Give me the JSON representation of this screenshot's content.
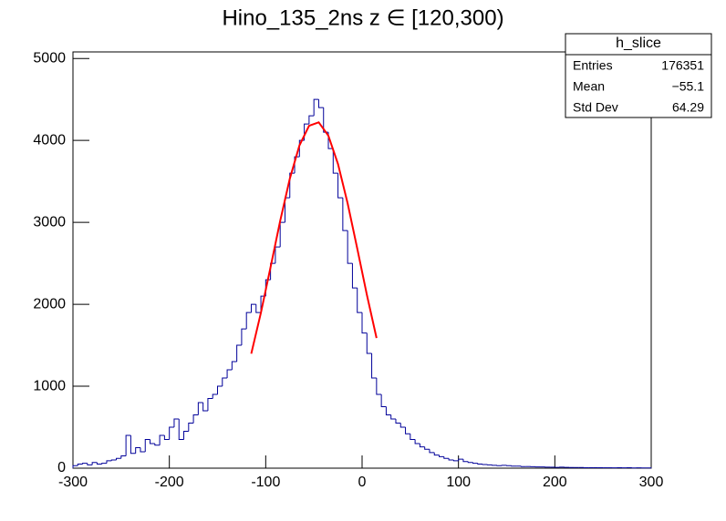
{
  "chart_data": {
    "type": "histogram",
    "title": "Hino_135_2ns z  ∈ [120,300)",
    "bins": [
      -300,
      -295,
      -290,
      -285,
      -280,
      -275,
      -270,
      -265,
      -260,
      -255,
      -250,
      -245,
      -240,
      -235,
      -230,
      -225,
      -220,
      -215,
      -210,
      -205,
      -200,
      -195,
      -190,
      -185,
      -180,
      -175,
      -170,
      -165,
      -160,
      -155,
      -150,
      -145,
      -140,
      -135,
      -130,
      -125,
      -120,
      -115,
      -110,
      -105,
      -100,
      -95,
      -90,
      -85,
      -80,
      -75,
      -70,
      -65,
      -60,
      -55,
      -50,
      -45,
      -40,
      -35,
      -30,
      -25,
      -20,
      -15,
      -10,
      -5,
      0,
      5,
      10,
      15,
      20,
      25,
      30,
      35,
      40,
      45,
      50,
      55,
      60,
      65,
      70,
      75,
      80,
      85,
      90,
      95,
      100,
      105,
      110,
      115,
      120,
      125,
      130,
      135,
      140,
      145,
      150,
      155,
      160,
      165,
      170,
      175,
      180,
      185,
      190,
      195,
      200,
      205,
      210,
      215,
      220,
      225,
      230,
      235,
      240,
      245,
      250,
      255,
      260,
      265,
      270,
      275,
      280,
      285,
      290,
      295,
      300
    ],
    "values": [
      30,
      50,
      60,
      40,
      70,
      50,
      60,
      90,
      100,
      120,
      150,
      400,
      180,
      250,
      200,
      350,
      300,
      280,
      400,
      350,
      500,
      600,
      350,
      450,
      550,
      650,
      800,
      700,
      850,
      900,
      1000,
      1100,
      1200,
      1300,
      1500,
      1700,
      1900,
      2000,
      1900,
      2100,
      2300,
      2500,
      2700,
      3000,
      3300,
      3600,
      3800,
      4000,
      4200,
      4300,
      4500,
      4400,
      4100,
      3900,
      3600,
      3300,
      2900,
      2500,
      2200,
      1900,
      1650,
      1400,
      1100,
      900,
      750,
      650,
      600,
      550,
      500,
      420,
      350,
      300,
      260,
      230,
      190,
      160,
      140,
      120,
      100,
      90,
      110,
      80,
      70,
      60,
      50,
      45,
      40,
      35,
      30,
      35,
      30,
      25,
      25,
      20,
      20,
      18,
      15,
      15,
      12,
      12,
      10,
      12,
      10,
      8,
      8,
      8,
      6,
      6,
      6,
      5,
      5,
      5,
      4,
      6,
      4,
      5,
      3,
      4,
      3,
      3
    ],
    "color": "#000099",
    "fit": {
      "color": "#ff0000",
      "x": [
        -115,
        -105,
        -95,
        -85,
        -75,
        -65,
        -55,
        -45,
        -35,
        -25,
        -15,
        -5,
        5,
        15
      ],
      "values": [
        1397,
        1896,
        2452,
        3017,
        3533,
        3939,
        4179,
        4221,
        4058,
        3712,
        3232,
        2680,
        2114,
        1588
      ]
    },
    "xlim": [
      -300,
      300
    ],
    "xticks": [
      -300,
      -200,
      -100,
      0,
      100,
      200,
      300
    ],
    "ylim": [
      0,
      5080
    ],
    "yticks": [
      0,
      1000,
      2000,
      3000,
      4000,
      5000
    ],
    "stats": {
      "title": "h_slice",
      "rows": [
        {
          "name": "Entries",
          "value": 176351
        },
        {
          "name": "Mean",
          "value": {
            "value": -55.1,
            "label": "−55.1"
          }
        },
        {
          "name": "Std Dev",
          "value": 64.29
        }
      ]
    }
  }
}
